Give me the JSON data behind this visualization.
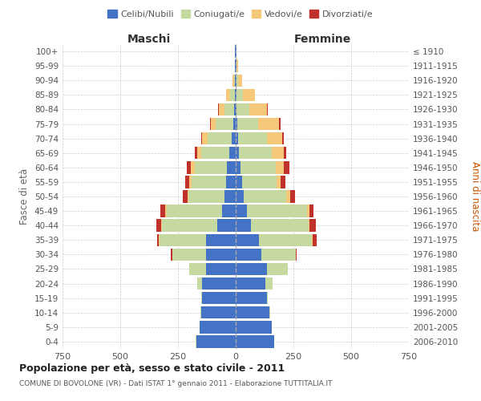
{
  "age_groups": [
    "0-4",
    "5-9",
    "10-14",
    "15-19",
    "20-24",
    "25-29",
    "30-34",
    "35-39",
    "40-44",
    "45-49",
    "50-54",
    "55-59",
    "60-64",
    "65-69",
    "70-74",
    "75-79",
    "80-84",
    "85-89",
    "90-94",
    "95-99",
    "100+"
  ],
  "birth_years": [
    "2006-2010",
    "2001-2005",
    "1996-2000",
    "1991-1995",
    "1986-1990",
    "1981-1985",
    "1976-1980",
    "1971-1975",
    "1966-1970",
    "1961-1965",
    "1956-1960",
    "1951-1955",
    "1946-1950",
    "1941-1945",
    "1936-1940",
    "1931-1935",
    "1926-1930",
    "1921-1925",
    "1916-1920",
    "1911-1915",
    "≤ 1910"
  ],
  "colors": {
    "celibi": "#4472C4",
    "coniugati": "#C6D9A0",
    "vedovi": "#F5C87A",
    "divorziati": "#C0312B"
  },
  "maschi": {
    "celibi": [
      170,
      155,
      150,
      145,
      145,
      130,
      130,
      130,
      80,
      60,
      50,
      42,
      38,
      28,
      18,
      12,
      8,
      5,
      3,
      2,
      2
    ],
    "coniugati": [
      2,
      2,
      2,
      5,
      20,
      70,
      145,
      200,
      240,
      240,
      155,
      150,
      140,
      120,
      105,
      75,
      40,
      18,
      5,
      0,
      0
    ],
    "vedovi": [
      0,
      0,
      0,
      0,
      0,
      0,
      0,
      2,
      2,
      5,
      5,
      10,
      15,
      20,
      22,
      20,
      25,
      20,
      5,
      2,
      0
    ],
    "divorziati": [
      0,
      0,
      0,
      0,
      2,
      2,
      5,
      10,
      22,
      22,
      18,
      18,
      20,
      8,
      5,
      3,
      3,
      0,
      0,
      0,
      0
    ]
  },
  "femmine": {
    "celibi": [
      165,
      155,
      145,
      135,
      130,
      135,
      110,
      100,
      65,
      50,
      35,
      28,
      20,
      15,
      10,
      8,
      5,
      5,
      2,
      2,
      2
    ],
    "coniugati": [
      2,
      2,
      3,
      5,
      30,
      90,
      150,
      230,
      250,
      260,
      185,
      150,
      155,
      140,
      125,
      90,
      55,
      25,
      8,
      2,
      0
    ],
    "vedovi": [
      0,
      0,
      0,
      0,
      0,
      0,
      0,
      2,
      5,
      8,
      15,
      18,
      35,
      55,
      65,
      90,
      75,
      55,
      18,
      5,
      2
    ],
    "divorziati": [
      0,
      0,
      0,
      0,
      0,
      2,
      5,
      18,
      28,
      20,
      22,
      18,
      22,
      10,
      8,
      8,
      5,
      0,
      0,
      0,
      0
    ]
  },
  "title": "Popolazione per età, sesso e stato civile - 2011",
  "subtitle": "COMUNE DI BOVOLONE (VR) - Dati ISTAT 1° gennaio 2011 - Elaborazione TUTTITALIA.IT",
  "xlabel_left": "Maschi",
  "xlabel_right": "Femmine",
  "ylabel_left": "Fasce di età",
  "ylabel_right": "Anni di nascita",
  "xlim": 750,
  "legend_labels": [
    "Celibi/Nubili",
    "Coniugati/e",
    "Vedovi/e",
    "Divorziati/e"
  ],
  "bg_color": "#ffffff",
  "grid_color": "#cccccc"
}
